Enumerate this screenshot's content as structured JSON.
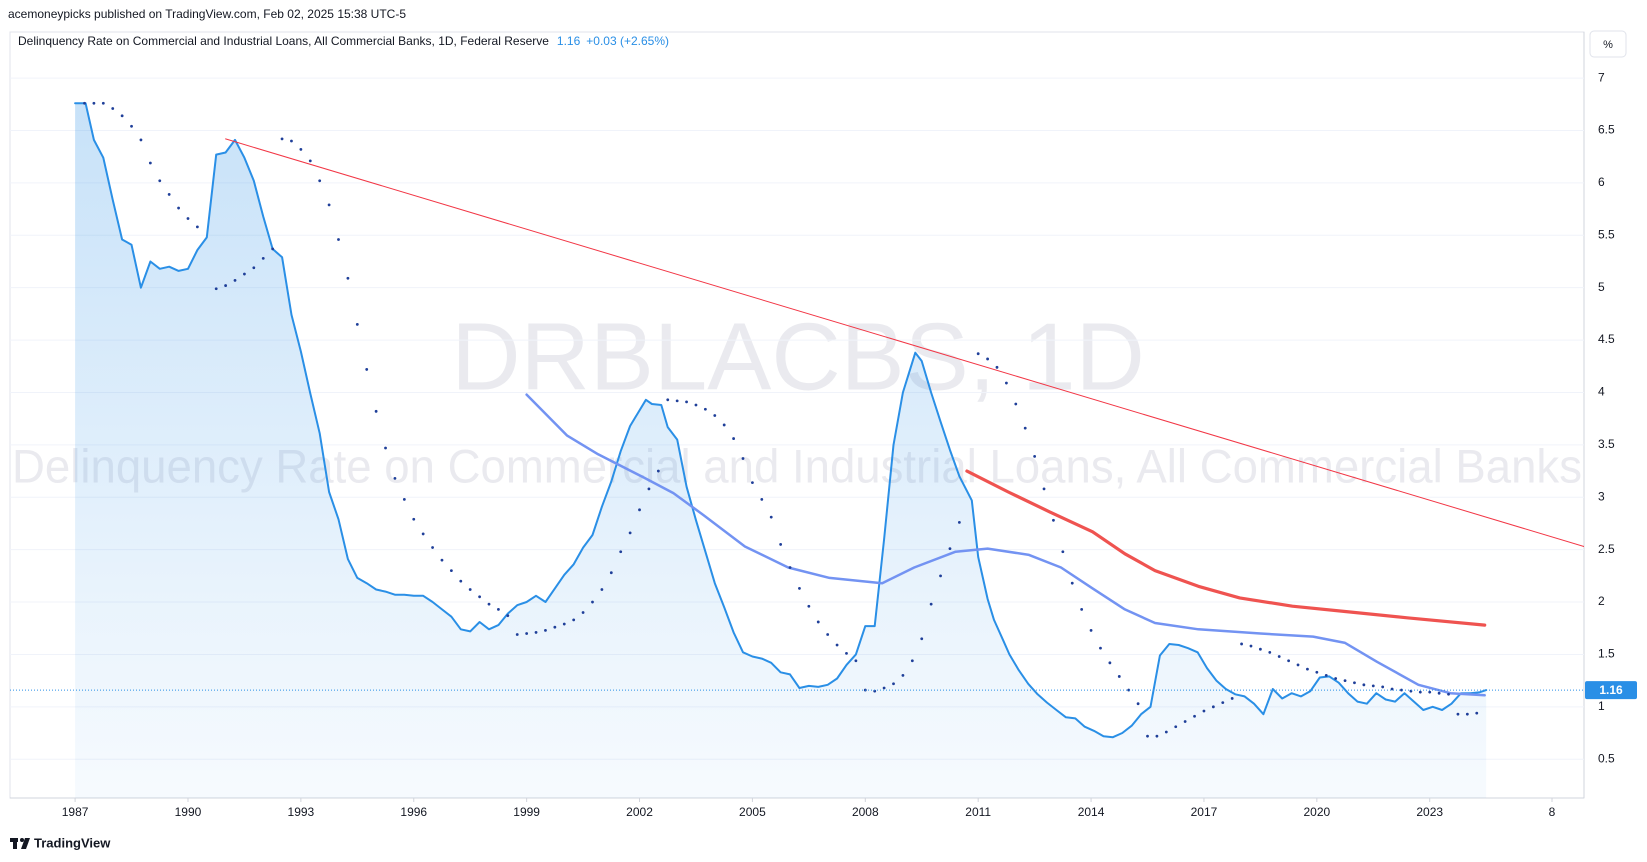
{
  "chart_data": {
    "type": "line",
    "header": "acemoneypicks published on TradingView.com, Feb 02, 2025 15:38 UTC-5",
    "last_value": 1.16,
    "change": "+0.03 (+2.65%)",
    "watermark_symbol": "DRBLACBS, 1D",
    "watermark_title": "Delinquency Rate on Commercial and Industrial Loans, All Commercial Banks",
    "y_unit": "%",
    "brand": "TradingView",
    "xlim": [
      1985.27,
      2027.1
    ],
    "ylim": [
      0.13,
      7.44
    ],
    "xticks": [
      1987,
      1990,
      1993,
      1996,
      1999,
      2002,
      2005,
      2008,
      2011,
      2014,
      2017,
      2020,
      2023,
      {
        "value": 2026.25,
        "label": "8"
      }
    ],
    "yticks": [
      0.5,
      1,
      1.5,
      2,
      2.5,
      3,
      3.5,
      4,
      4.5,
      5,
      5.5,
      6,
      6.5,
      7
    ],
    "grid": true,
    "series": [
      {
        "name": "Delinquency Rate on Commercial and Industrial Loans, All Commercial Banks, 1D, Federal Reserve",
        "style": "area",
        "color": "#2a8fe6",
        "x": [
          1987.0,
          1987.28,
          1987.5,
          1987.75,
          1988.0,
          1988.25,
          1988.5,
          1988.75,
          1989.0,
          1989.25,
          1989.5,
          1989.75,
          1990.0,
          1990.25,
          1990.5,
          1990.75,
          1991.0,
          1991.25,
          1991.5,
          1991.75,
          1992.0,
          1992.25,
          1992.5,
          1992.75,
          1993.0,
          1993.25,
          1993.5,
          1993.75,
          1994.0,
          1994.25,
          1994.5,
          1994.75,
          1995.0,
          1995.25,
          1995.5,
          1995.75,
          1996.0,
          1996.25,
          1996.5,
          1996.75,
          1997.0,
          1997.25,
          1997.5,
          1997.75,
          1998.0,
          1998.25,
          1998.5,
          1998.75,
          1999.0,
          1999.25,
          1999.5,
          1999.75,
          2000.0,
          2000.25,
          2000.5,
          2000.75,
          2001.0,
          2001.25,
          2001.5,
          2001.75,
          2002.17,
          2002.33,
          2002.58,
          2002.75,
          2003.0,
          2003.25,
          2003.5,
          2003.75,
          2004.0,
          2004.25,
          2004.5,
          2004.75,
          2005.0,
          2005.25,
          2005.5,
          2005.75,
          2006.0,
          2006.25,
          2006.5,
          2006.75,
          2007.0,
          2007.25,
          2007.5,
          2007.75,
          2008.0,
          2008.25,
          2008.5,
          2008.75,
          2009.0,
          2009.33,
          2009.5,
          2009.75,
          2010.0,
          2010.25,
          2010.5,
          2010.83,
          2011.0,
          2011.25,
          2011.42,
          2011.67,
          2011.83,
          2012.08,
          2012.33,
          2012.58,
          2012.83,
          2013.08,
          2013.33,
          2013.58,
          2013.83,
          2014.08,
          2014.33,
          2014.58,
          2014.83,
          2015.08,
          2015.33,
          2015.58,
          2015.83,
          2016.08,
          2016.33,
          2016.58,
          2016.83,
          2017.08,
          2017.33,
          2017.58,
          2017.83,
          2018.08,
          2018.33,
          2018.58,
          2018.83,
          2019.08,
          2019.33,
          2019.58,
          2019.83,
          2020.08,
          2020.33,
          2020.58,
          2020.83,
          2021.08,
          2021.33,
          2021.58,
          2021.83,
          2022.08,
          2022.33,
          2022.58,
          2022.83,
          2023.08,
          2023.33,
          2023.58,
          2023.83,
          2024.08,
          2024.33,
          2024.5
        ],
        "values": [
          6.76,
          6.76,
          6.41,
          6.24,
          5.84,
          5.46,
          5.41,
          5.0,
          5.25,
          5.18,
          5.2,
          5.16,
          5.18,
          5.36,
          5.48,
          6.27,
          6.29,
          6.41,
          6.24,
          6.02,
          5.68,
          5.37,
          5.29,
          4.74,
          4.39,
          3.99,
          3.61,
          3.05,
          2.79,
          2.41,
          2.23,
          2.18,
          2.12,
          2.1,
          2.07,
          2.07,
          2.06,
          2.06,
          2.0,
          1.93,
          1.86,
          1.74,
          1.72,
          1.81,
          1.74,
          1.78,
          1.89,
          1.97,
          2.0,
          2.06,
          2.0,
          2.13,
          2.26,
          2.36,
          2.52,
          2.64,
          2.91,
          3.15,
          3.44,
          3.68,
          3.93,
          3.89,
          3.88,
          3.67,
          3.55,
          3.1,
          2.78,
          2.48,
          2.18,
          1.95,
          1.71,
          1.52,
          1.48,
          1.46,
          1.42,
          1.33,
          1.31,
          1.18,
          1.2,
          1.19,
          1.21,
          1.27,
          1.4,
          1.5,
          1.77,
          1.77,
          2.6,
          3.5,
          4.0,
          4.38,
          4.3,
          4.0,
          3.72,
          3.45,
          3.2,
          2.97,
          2.43,
          2.03,
          1.83,
          1.63,
          1.5,
          1.35,
          1.22,
          1.12,
          1.04,
          0.97,
          0.9,
          0.89,
          0.81,
          0.77,
          0.72,
          0.71,
          0.75,
          0.82,
          0.93,
          1.0,
          1.49,
          1.6,
          1.59,
          1.56,
          1.52,
          1.37,
          1.25,
          1.17,
          1.12,
          1.1,
          1.03,
          0.93,
          1.17,
          1.08,
          1.13,
          1.1,
          1.15,
          1.28,
          1.29,
          1.23,
          1.13,
          1.05,
          1.03,
          1.13,
          1.07,
          1.05,
          1.13,
          1.05,
          0.97,
          1.0,
          0.97,
          1.03,
          1.13,
          1.13,
          1.14,
          1.16
        ]
      },
      {
        "style": "line",
        "color": "#7393f2",
        "x": [
          1999.0,
          2000.07,
          2000.9,
          2002.1,
          2002.9,
          2003.7,
          2004.8,
          2005.95,
          2007.05,
          2008.45,
          2009.3,
          2010.4,
          2011.25,
          2012.35,
          2013.2,
          2014.04,
          2014.9,
          2015.7,
          2016.85,
          2018.5,
          2019.9,
          2020.75,
          2021.6,
          2022.7,
          2023.55,
          2024.46
        ],
        "values": [
          3.98,
          3.59,
          3.41,
          3.19,
          3.04,
          2.83,
          2.53,
          2.33,
          2.23,
          2.18,
          2.33,
          2.48,
          2.51,
          2.45,
          2.33,
          2.13,
          1.93,
          1.8,
          1.74,
          1.7,
          1.67,
          1.61,
          1.43,
          1.21,
          1.13,
          1.11
        ]
      },
      {
        "style": "bold-line",
        "color": "#ef5350",
        "x": [
          2010.7,
          2011.8,
          2012.9,
          2014.04,
          2014.9,
          2015.7,
          2016.85,
          2017.95,
          2019.35,
          2020.75,
          2022.4,
          2024.46
        ],
        "values": [
          3.25,
          3.05,
          2.86,
          2.67,
          2.46,
          2.3,
          2.15,
          2.04,
          1.96,
          1.91,
          1.85,
          1.78
        ]
      },
      {
        "style": "dots",
        "color": "#1f3f99",
        "x": [
          1987.25,
          1987.5,
          1987.75,
          1988,
          1988.25,
          1988.5,
          1988.75,
          1989,
          1989.25,
          1989.5,
          1989.75,
          1990,
          1990.25,
          1990.5,
          1990.75,
          1991,
          1991.25,
          1991.5,
          1991.75,
          1992,
          1992.25,
          1992.5,
          1992.75,
          1993,
          1993.25,
          1993.5,
          1993.75,
          1994,
          1994.25,
          1994.5,
          1994.75,
          1995,
          1995.25,
          1995.5,
          1995.75,
          1996,
          1996.25,
          1996.5,
          1996.75,
          1997,
          1997.25,
          1997.5,
          1997.75,
          1998,
          1998.25,
          1998.5,
          1998.75,
          1999,
          1999.25,
          1999.5,
          1999.75,
          2000,
          2000.25,
          2000.5,
          2000.75,
          2001,
          2001.25,
          2001.5,
          2001.75,
          2002,
          2002.25,
          2002.5,
          2002.75,
          2003,
          2003.25,
          2003.5,
          2003.75,
          2004,
          2004.25,
          2004.5,
          2004.75,
          2005,
          2005.25,
          2005.5,
          2005.75,
          2006,
          2006.25,
          2006.5,
          2006.75,
          2007,
          2007.25,
          2007.5,
          2007.75,
          2008,
          2008.25,
          2008.5,
          2008.75,
          2009,
          2009.25,
          2009.5,
          2009.75,
          2010,
          2010.25,
          2010.5,
          2010.75,
          2011,
          2011.25,
          2011.5,
          2011.75,
          2012,
          2012.25,
          2012.5,
          2012.75,
          2013,
          2013.25,
          2013.5,
          2013.75,
          2014,
          2014.25,
          2014.5,
          2014.75,
          2015,
          2015.25,
          2015.5,
          2015.75,
          2016,
          2016.25,
          2016.5,
          2016.75,
          2017,
          2017.25,
          2017.5,
          2017.75,
          2018,
          2018.25,
          2018.5,
          2018.75,
          2019,
          2019.25,
          2019.5,
          2019.75,
          2020,
          2020.25,
          2020.5,
          2020.75,
          2021,
          2021.25,
          2021.5,
          2021.75,
          2022,
          2022.25,
          2022.5,
          2022.75,
          2023,
          2023.25,
          2023.5,
          2023.75,
          2024,
          2024.25
        ],
        "values": [
          6.76,
          6.76,
          6.76,
          6.71,
          6.64,
          6.54,
          6.41,
          6.19,
          6.02,
          5.89,
          5.76,
          5.66,
          5.58,
          null,
          4.99,
          5.02,
          5.07,
          5.13,
          5.19,
          5.28,
          5.37,
          6.42,
          6.4,
          6.32,
          6.21,
          6.02,
          5.79,
          5.46,
          5.09,
          4.65,
          4.22,
          3.82,
          3.47,
          3.18,
          2.98,
          2.79,
          2.65,
          2.52,
          2.4,
          2.3,
          2.2,
          2.12,
          2.05,
          1.98,
          1.93,
          1.87,
          1.69,
          1.7,
          1.71,
          1.73,
          1.76,
          1.79,
          1.83,
          1.9,
          2.0,
          2.12,
          2.28,
          2.48,
          2.66,
          2.88,
          3.08,
          3.25,
          3.93,
          3.92,
          3.91,
          3.88,
          3.84,
          3.78,
          3.69,
          3.56,
          3.37,
          3.14,
          2.98,
          2.81,
          2.55,
          2.33,
          2.13,
          1.96,
          1.81,
          1.69,
          1.59,
          1.51,
          1.44,
          1.16,
          1.15,
          1.18,
          1.22,
          1.3,
          1.44,
          1.65,
          1.98,
          2.25,
          2.51,
          2.76,
          null,
          4.37,
          4.32,
          4.24,
          4.09,
          3.89,
          3.66,
          3.39,
          3.08,
          2.78,
          2.48,
          2.18,
          1.93,
          1.73,
          1.56,
          1.42,
          1.29,
          1.16,
          1.03,
          0.72,
          0.72,
          0.76,
          0.81,
          0.86,
          0.91,
          0.96,
          1.0,
          1.04,
          1.08,
          1.6,
          1.58,
          1.55,
          1.52,
          1.48,
          1.44,
          1.4,
          1.36,
          1.33,
          1.3,
          1.27,
          1.25,
          1.23,
          1.21,
          1.2,
          1.19,
          1.17,
          1.16,
          1.15,
          1.14,
          1.14,
          1.13,
          1.12,
          0.93,
          0.93,
          0.94
        ]
      },
      {
        "style": "thin-line",
        "color": "#f23645",
        "x": [
          1991.0,
          2027.1
        ],
        "values": [
          6.42,
          2.53
        ]
      }
    ]
  }
}
